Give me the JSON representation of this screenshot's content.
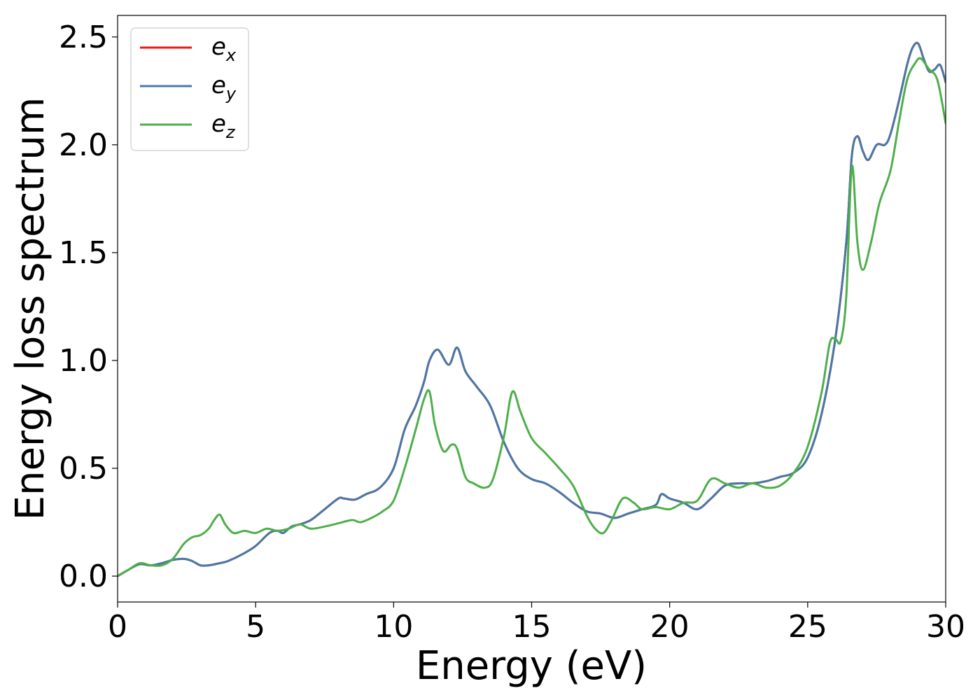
{
  "chart_data": {
    "type": "line",
    "title": "",
    "xlabel": "Energy (eV)",
    "ylabel": "Energy loss spectrum",
    "xlim": [
      0,
      30
    ],
    "ylim": [
      -0.12,
      2.6
    ],
    "xticks": [
      0,
      5,
      10,
      15,
      20,
      25,
      30
    ],
    "xtick_labels": [
      "0",
      "5",
      "10",
      "15",
      "20",
      "25",
      "30"
    ],
    "yticks": [
      0.0,
      0.5,
      1.0,
      1.5,
      2.0,
      2.5
    ],
    "ytick_labels": [
      "0.0",
      "0.5",
      "1.0",
      "1.5",
      "2.0",
      "2.5"
    ],
    "grid": false,
    "legend_position": "top-left",
    "series": [
      {
        "name": "e_x",
        "legend_base": "e",
        "legend_sub": "x",
        "color": "#e41a1c",
        "x": [
          0,
          0.4,
          0.8,
          1.2,
          1.6,
          2.0,
          2.4,
          2.7,
          3.0,
          3.3,
          3.7,
          4.0,
          4.5,
          5.0,
          5.5,
          5.8,
          6.0,
          6.3,
          6.6,
          7.0,
          7.5,
          8.0,
          8.2,
          8.6,
          9.0,
          9.5,
          10.0,
          10.4,
          10.8,
          11.1,
          11.3,
          11.6,
          12.0,
          12.3,
          12.6,
          13.0,
          13.5,
          14.0,
          14.5,
          15.0,
          15.5,
          16.0,
          16.5,
          17.0,
          17.5,
          18.0,
          18.5,
          19.0,
          19.5,
          19.7,
          20.0,
          20.5,
          21.0,
          21.5,
          22.0,
          22.5,
          23.0,
          23.5,
          24.0,
          24.5,
          25.0,
          25.5,
          26.0,
          26.4,
          26.6,
          26.8,
          27.0,
          27.2,
          27.5,
          27.8,
          28.0,
          28.3,
          28.6,
          28.8,
          29.0,
          29.2,
          29.4,
          29.6,
          29.8,
          30.0
        ],
        "y": [
          0.0,
          0.03,
          0.055,
          0.05,
          0.06,
          0.075,
          0.08,
          0.07,
          0.05,
          0.05,
          0.06,
          0.07,
          0.1,
          0.14,
          0.2,
          0.21,
          0.2,
          0.23,
          0.24,
          0.26,
          0.31,
          0.36,
          0.36,
          0.355,
          0.38,
          0.41,
          0.5,
          0.68,
          0.79,
          0.9,
          1.0,
          1.05,
          0.98,
          1.06,
          0.95,
          0.88,
          0.79,
          0.62,
          0.5,
          0.45,
          0.43,
          0.39,
          0.34,
          0.3,
          0.29,
          0.27,
          0.29,
          0.31,
          0.33,
          0.38,
          0.36,
          0.34,
          0.31,
          0.36,
          0.42,
          0.43,
          0.43,
          0.44,
          0.46,
          0.48,
          0.55,
          0.75,
          1.1,
          1.55,
          1.95,
          2.04,
          1.97,
          1.93,
          2.0,
          2.0,
          2.05,
          2.2,
          2.37,
          2.45,
          2.47,
          2.4,
          2.34,
          2.35,
          2.37,
          2.29
        ]
      },
      {
        "name": "e_y",
        "legend_base": "e",
        "legend_sub": "y",
        "color": "#4878a8",
        "x": [
          0,
          0.4,
          0.8,
          1.2,
          1.6,
          2.0,
          2.4,
          2.7,
          3.0,
          3.3,
          3.7,
          4.0,
          4.5,
          5.0,
          5.5,
          5.8,
          6.0,
          6.3,
          6.6,
          7.0,
          7.5,
          8.0,
          8.2,
          8.6,
          9.0,
          9.5,
          10.0,
          10.4,
          10.8,
          11.1,
          11.3,
          11.6,
          12.0,
          12.3,
          12.6,
          13.0,
          13.5,
          14.0,
          14.5,
          15.0,
          15.5,
          16.0,
          16.5,
          17.0,
          17.5,
          18.0,
          18.5,
          19.0,
          19.5,
          19.7,
          20.0,
          20.5,
          21.0,
          21.5,
          22.0,
          22.5,
          23.0,
          23.5,
          24.0,
          24.5,
          25.0,
          25.5,
          26.0,
          26.4,
          26.6,
          26.8,
          27.0,
          27.2,
          27.5,
          27.8,
          28.0,
          28.3,
          28.6,
          28.8,
          29.0,
          29.2,
          29.4,
          29.6,
          29.8,
          30.0
        ],
        "y": [
          0.0,
          0.03,
          0.055,
          0.05,
          0.06,
          0.075,
          0.08,
          0.07,
          0.05,
          0.05,
          0.06,
          0.07,
          0.1,
          0.14,
          0.2,
          0.21,
          0.2,
          0.23,
          0.24,
          0.26,
          0.31,
          0.36,
          0.36,
          0.355,
          0.38,
          0.41,
          0.5,
          0.68,
          0.79,
          0.9,
          1.0,
          1.05,
          0.98,
          1.06,
          0.95,
          0.88,
          0.79,
          0.62,
          0.5,
          0.45,
          0.43,
          0.39,
          0.34,
          0.3,
          0.29,
          0.27,
          0.29,
          0.31,
          0.33,
          0.38,
          0.36,
          0.34,
          0.31,
          0.36,
          0.42,
          0.43,
          0.43,
          0.44,
          0.46,
          0.48,
          0.55,
          0.75,
          1.1,
          1.55,
          1.95,
          2.04,
          1.97,
          1.93,
          2.0,
          2.0,
          2.05,
          2.2,
          2.37,
          2.45,
          2.47,
          2.4,
          2.34,
          2.35,
          2.37,
          2.29
        ]
      },
      {
        "name": "e_z",
        "legend_base": "e",
        "legend_sub": "z",
        "color": "#4daf4a",
        "x": [
          0,
          0.4,
          0.8,
          1.2,
          1.6,
          2.0,
          2.4,
          2.7,
          3.0,
          3.3,
          3.5,
          3.7,
          3.9,
          4.2,
          4.6,
          5.0,
          5.4,
          5.8,
          6.2,
          6.6,
          7.0,
          7.5,
          8.0,
          8.5,
          8.8,
          9.2,
          9.6,
          10.0,
          10.4,
          10.8,
          11.1,
          11.3,
          11.5,
          11.8,
          12.1,
          12.3,
          12.6,
          12.9,
          13.3,
          13.6,
          14.0,
          14.3,
          14.6,
          15.0,
          15.5,
          16.0,
          16.5,
          17.0,
          17.3,
          17.6,
          17.9,
          18.3,
          18.7,
          19.0,
          19.5,
          20.0,
          20.5,
          21.0,
          21.5,
          22.0,
          22.5,
          23.0,
          23.5,
          24.0,
          24.5,
          25.0,
          25.5,
          25.8,
          26.0,
          26.2,
          26.4,
          26.6,
          26.8,
          27.0,
          27.3,
          27.6,
          28.0,
          28.3,
          28.6,
          28.9,
          29.1,
          29.4,
          29.7,
          30.0
        ],
        "y": [
          0.0,
          0.03,
          0.06,
          0.05,
          0.05,
          0.08,
          0.15,
          0.18,
          0.19,
          0.22,
          0.26,
          0.285,
          0.24,
          0.2,
          0.21,
          0.2,
          0.22,
          0.21,
          0.22,
          0.24,
          0.22,
          0.23,
          0.245,
          0.26,
          0.25,
          0.27,
          0.3,
          0.35,
          0.5,
          0.68,
          0.82,
          0.855,
          0.7,
          0.58,
          0.61,
          0.59,
          0.46,
          0.43,
          0.41,
          0.45,
          0.65,
          0.855,
          0.76,
          0.64,
          0.57,
          0.5,
          0.42,
          0.28,
          0.22,
          0.2,
          0.26,
          0.36,
          0.34,
          0.31,
          0.32,
          0.31,
          0.34,
          0.35,
          0.45,
          0.43,
          0.41,
          0.43,
          0.41,
          0.42,
          0.48,
          0.6,
          0.85,
          1.08,
          1.1,
          1.09,
          1.3,
          1.9,
          1.55,
          1.42,
          1.55,
          1.73,
          1.88,
          2.1,
          2.3,
          2.38,
          2.4,
          2.35,
          2.3,
          2.1
        ]
      }
    ]
  }
}
